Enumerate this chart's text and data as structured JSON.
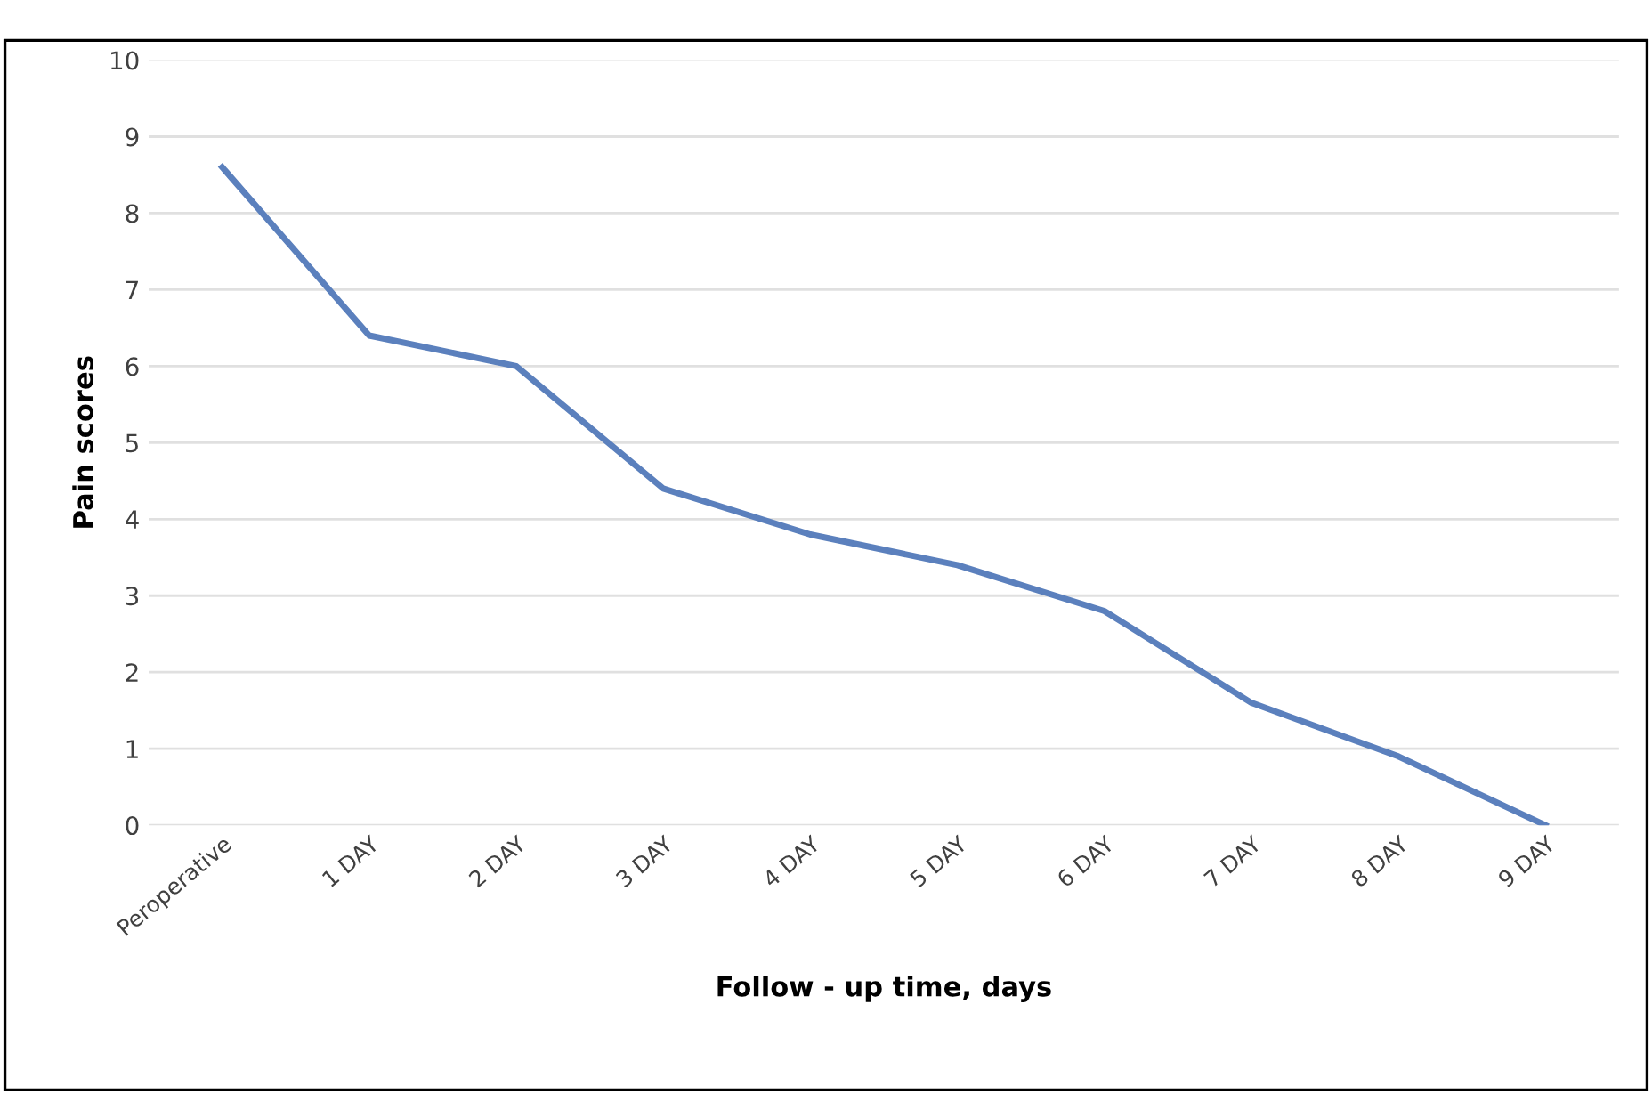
{
  "chart_data": {
    "type": "line",
    "xlabel": "Follow - up time, days",
    "ylabel": "Pain scores",
    "categories": [
      "Peroperative",
      "1 DAY",
      "2 DAY",
      "3 DAY",
      "4 DAY",
      "5 DAY",
      "6 DAY",
      "7 DAY",
      "8 DAY",
      "9 DAY"
    ],
    "series": [
      {
        "color": "#5b80bd",
        "values": [
          8.6,
          6.4,
          6.0,
          4.4,
          3.8,
          3.4,
          2.8,
          1.6,
          0.9,
          0.0
        ]
      }
    ],
    "ylim": [
      0,
      10
    ],
    "yticks": [
      0,
      1,
      2,
      3,
      4,
      5,
      6,
      7,
      8,
      9,
      10
    ],
    "grid": "y",
    "marker": "none",
    "line_style": "solid"
  }
}
